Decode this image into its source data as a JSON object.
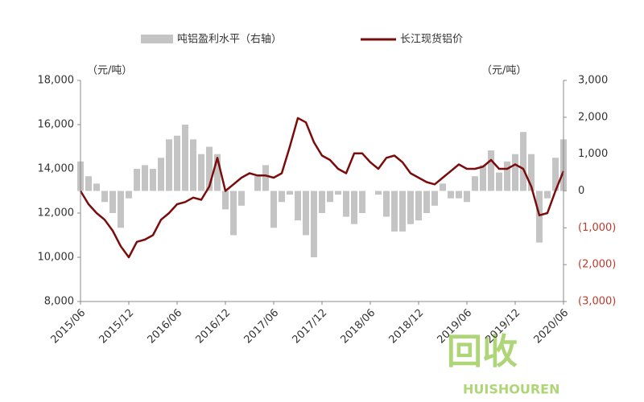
{
  "chart_data": {
    "type": "bar-line",
    "legend": [
      "吨铝盈利水平（右轴）",
      "长江现货铝价"
    ],
    "ylabel": "（元/吨）",
    "y2label": "（元/吨）",
    "watermark": [
      "回收",
      "HUISHOUREN"
    ],
    "categories": [
      "2015/06",
      null,
      null,
      null,
      null,
      null,
      "2015/12",
      null,
      null,
      null,
      null,
      null,
      "2016/06",
      null,
      null,
      null,
      null,
      null,
      "2016/12",
      null,
      null,
      null,
      null,
      null,
      "2017/06",
      null,
      null,
      null,
      null,
      null,
      "2017/12",
      null,
      null,
      null,
      null,
      null,
      "2018/06",
      null,
      null,
      null,
      null,
      null,
      "2018/12",
      null,
      null,
      null,
      null,
      null,
      "2019/06",
      null,
      null,
      null,
      null,
      null,
      "2019/12",
      null,
      null,
      null,
      null,
      null,
      "2020/06"
    ],
    "series": [
      {
        "name": "吨铝盈利水平（右轴）",
        "type": "bar",
        "axis": "y2",
        "color": "#c4c4c4",
        "values": [
          800,
          400,
          200,
          -300,
          -600,
          -1000,
          -200,
          600,
          700,
          600,
          900,
          1400,
          1500,
          1800,
          1400,
          1000,
          1200,
          1000,
          -500,
          -1200,
          -400,
          0,
          400,
          700,
          -1000,
          -300,
          -100,
          -800,
          -1200,
          -1800,
          -600,
          -300,
          -100,
          -700,
          -900,
          -600,
          0,
          -100,
          -700,
          -1100,
          -1100,
          -900,
          -800,
          -600,
          -400,
          200,
          -200,
          -200,
          -300,
          400,
          700,
          1100,
          500,
          800,
          1000,
          1600,
          1000,
          -1400,
          -200,
          900,
          1400
        ]
      },
      {
        "name": "长江现货铝价",
        "type": "line",
        "axis": "y",
        "color": "#7b0c0c",
        "values": [
          13000,
          12400,
          12000,
          11700,
          11200,
          10500,
          10000,
          10700,
          10800,
          11000,
          11700,
          12000,
          12400,
          12500,
          12700,
          12600,
          13200,
          14500,
          13000,
          13300,
          13600,
          13800,
          13700,
          13700,
          13600,
          13800,
          15000,
          16300,
          16100,
          15200,
          14600,
          14400,
          14000,
          13800,
          14700,
          14700,
          14300,
          14000,
          14500,
          14600,
          14300,
          13800,
          13600,
          13400,
          13300,
          13600,
          13900,
          14200,
          14000,
          14000,
          14100,
          14400,
          14000,
          14000,
          14200,
          14000,
          13200,
          11900,
          12000,
          13000,
          13900
        ]
      }
    ],
    "ylim": [
      8000,
      18000
    ],
    "yticks": [
      {
        "value": 8000,
        "label": "8,000"
      },
      {
        "value": 10000,
        "label": "10,000"
      },
      {
        "value": 12000,
        "label": "12,000"
      },
      {
        "value": 14000,
        "label": "14,000"
      },
      {
        "value": 16000,
        "label": "16,000"
      },
      {
        "value": 18000,
        "label": "18,000"
      }
    ],
    "y2lim": [
      -3000,
      3000
    ],
    "y2ticks": [
      {
        "value": -3000,
        "label": "(3,000)"
      },
      {
        "value": -2000,
        "label": "(2,000)"
      },
      {
        "value": -1000,
        "label": "(1,000)"
      },
      0,
      {
        "value": 1000,
        "label": "1,000"
      },
      {
        "value": 2000,
        "label": "2,000"
      },
      {
        "value": 3000,
        "label": "3,000"
      }
    ],
    "negative_label_color": "#c0392b"
  }
}
